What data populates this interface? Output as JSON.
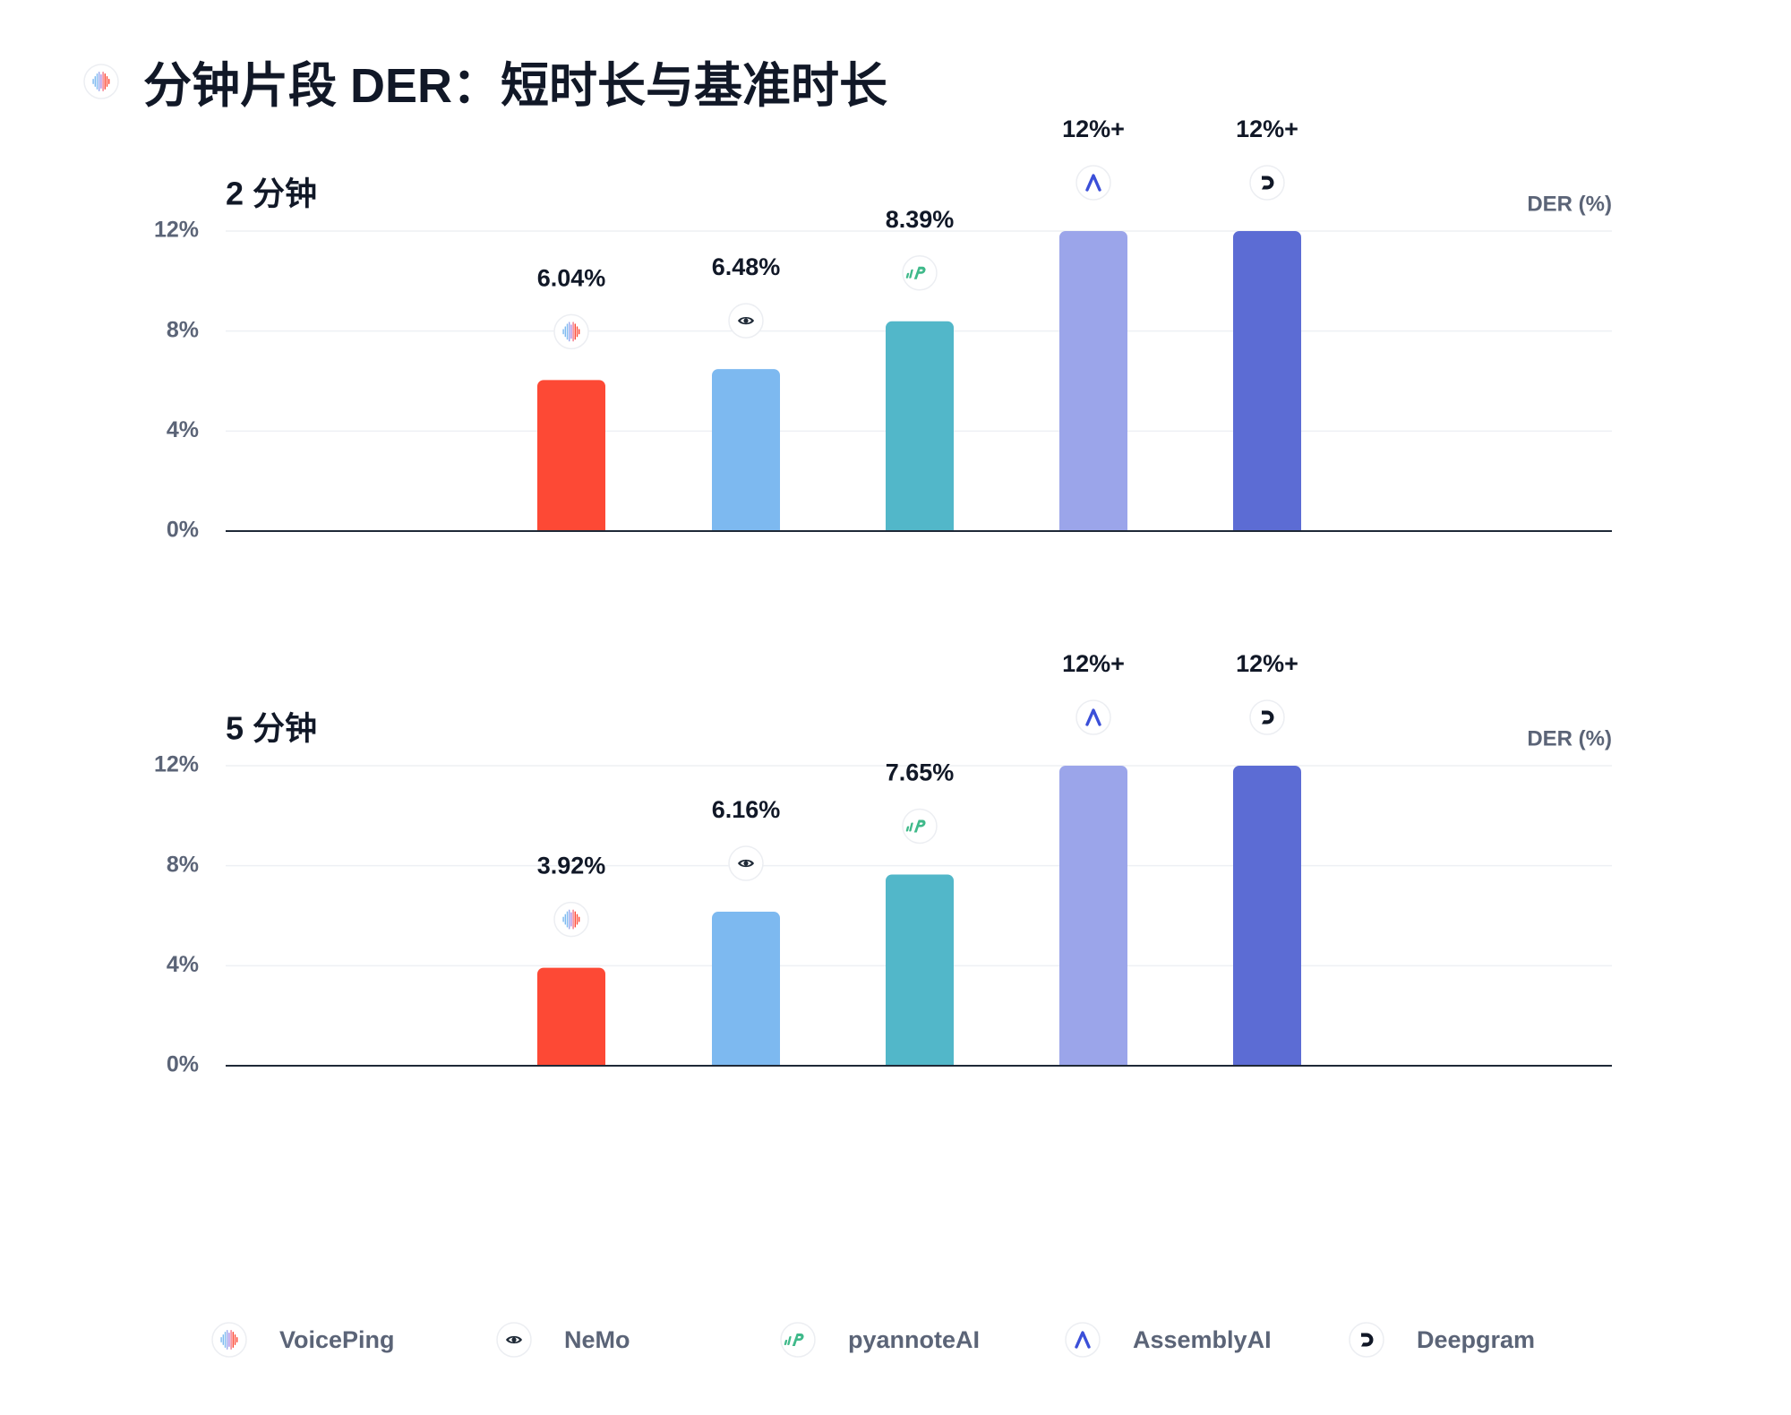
{
  "page": {
    "title": "分钟片段 DER：短时长与基准时长",
    "title_logo": "voiceping-icon"
  },
  "colors": {
    "VoicePing": "#fd4935",
    "NeMo": "#7db9f0",
    "pyannoteAI": "#52b7c9",
    "AssemblyAI": "#9ba5ea",
    "Deepgram": "#5c6cd4",
    "axis": "#1f2937",
    "grid": "#eef0f4",
    "tick_text": "#5b6477"
  },
  "chart_data": [
    {
      "type": "bar",
      "title": "2 分钟",
      "ylabel": "DER (%)",
      "ylim": [
        0,
        12
      ],
      "yticks": [
        0,
        4,
        8,
        12
      ],
      "ytick_labels": [
        "0%",
        "4%",
        "8%",
        "12%"
      ],
      "grid": true,
      "categories": [
        "VoicePing",
        "NeMo",
        "pyannoteAI",
        "AssemblyAI",
        "Deepgram"
      ],
      "values": [
        6.04,
        6.48,
        8.39,
        12,
        12
      ],
      "value_labels": [
        "6.04%",
        "6.48%",
        "8.39%",
        "12%+",
        "12%+"
      ],
      "icons": [
        "voiceping-icon",
        "nvidia-eye-icon",
        "pyannote-icon",
        "assemblyai-icon",
        "deepgram-icon"
      ]
    },
    {
      "type": "bar",
      "title": "5 分钟",
      "ylabel": "DER (%)",
      "ylim": [
        0,
        12
      ],
      "yticks": [
        0,
        4,
        8,
        12
      ],
      "ytick_labels": [
        "0%",
        "4%",
        "8%",
        "12%"
      ],
      "grid": true,
      "categories": [
        "VoicePing",
        "NeMo",
        "pyannoteAI",
        "AssemblyAI",
        "Deepgram"
      ],
      "values": [
        3.92,
        6.16,
        7.65,
        12,
        12
      ],
      "value_labels": [
        "3.92%",
        "6.16%",
        "7.65%",
        "12%+",
        "12%+"
      ],
      "icons": [
        "voiceping-icon",
        "nvidia-eye-icon",
        "pyannote-icon",
        "assemblyai-icon",
        "deepgram-icon"
      ]
    }
  ],
  "legend": {
    "position": "bottom",
    "items": [
      {
        "label": "VoicePing",
        "icon": "voiceping-icon"
      },
      {
        "label": "NeMo",
        "icon": "nvidia-eye-icon"
      },
      {
        "label": "pyannoteAI",
        "icon": "pyannote-icon"
      },
      {
        "label": "AssemblyAI",
        "icon": "assemblyai-icon"
      },
      {
        "label": "Deepgram",
        "icon": "deepgram-icon"
      }
    ]
  }
}
